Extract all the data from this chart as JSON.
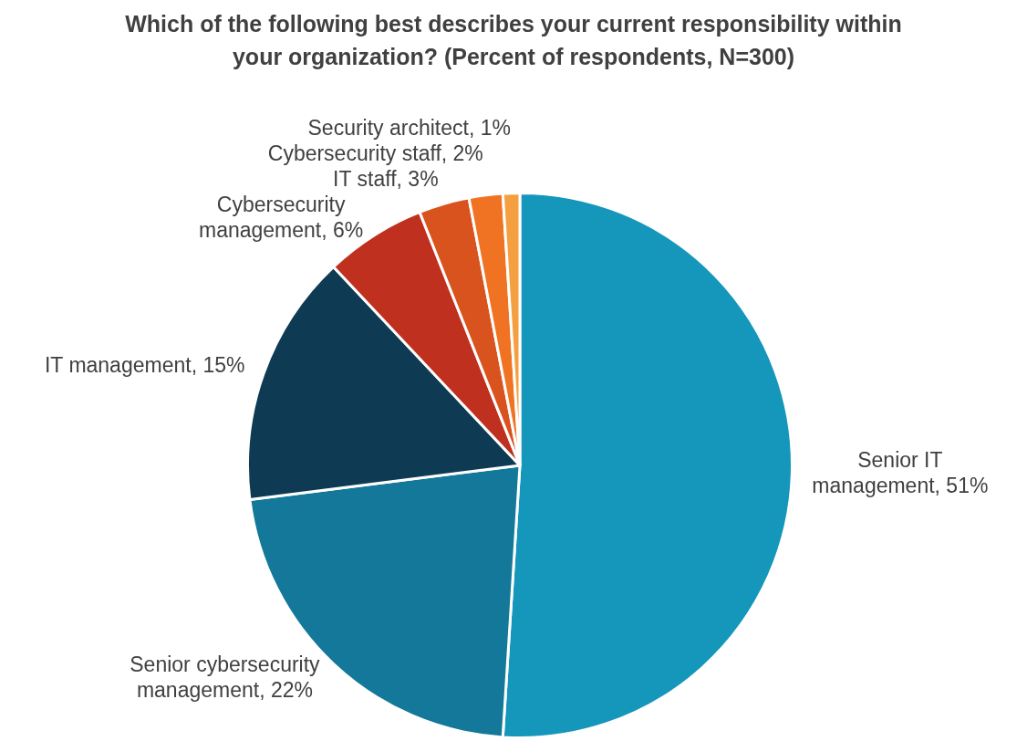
{
  "chart_data": {
    "type": "pie",
    "title": "Which of the following best describes your current responsibility within your organization? (Percent of respondents, N=300)",
    "categories": [
      "Senior IT management",
      "Senior cybersecurity management",
      "IT management",
      "Cybersecurity management",
      "IT staff",
      "Cybersecurity staff",
      "Security architect"
    ],
    "values": [
      51,
      22,
      15,
      6,
      3,
      2,
      1
    ],
    "colors": [
      "#1596bb",
      "#137899",
      "#0e3b53",
      "#c0301f",
      "#d9531e",
      "#f07323",
      "#f5a040"
    ],
    "value_labels": [
      "51%",
      "22%",
      "15%",
      "6%",
      "3%",
      "2%",
      "1%"
    ]
  }
}
